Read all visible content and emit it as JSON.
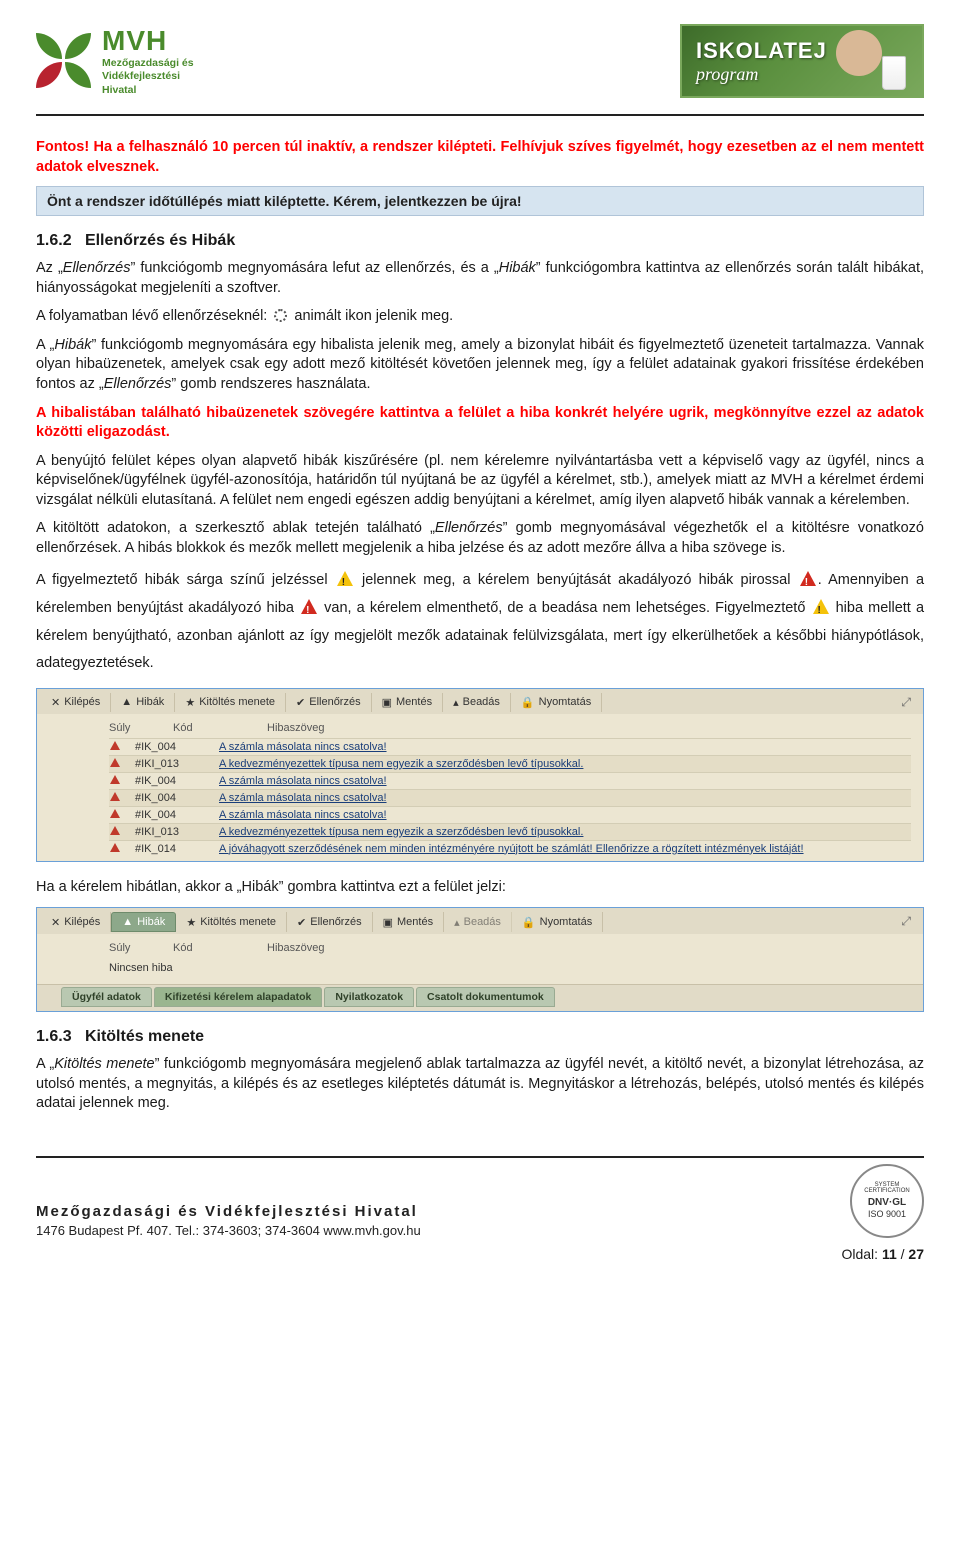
{
  "header": {
    "logo_acronym": "MVH",
    "logo_lines": [
      "Mezőgazdasági és",
      "Vidékfejlesztési",
      "Hivatal"
    ],
    "banner_title": "ISKOLATEJ",
    "banner_subtitle": "program"
  },
  "warning_text": "Fontos! Ha a felhasználó 10 percen túl inaktív, a rendszer kilépteti. Felhívjuk szíves figyelmét, hogy ezesetben az el nem mentett adatok elvesznek.",
  "notice_box": "Önt a rendszer időtúllépés miatt kiléptette. Kérem, jelentkezzen be újra!",
  "section_162": {
    "number": "1.6.2",
    "title": "Ellenőrzés és Hibák",
    "p1a": "Az „",
    "p1b": "Ellenőrzés",
    "p1c": "” funkciógomb megnyomására lefut az ellenőrzés, és a „",
    "p1d": "Hibák",
    "p1e": "” funkciógombra kattintva az ellenőrzés során talált hibákat, hiányosságokat megjeleníti a szoftver.",
    "p2a": "A folyamatban lévő ellenőrzéseknél:",
    "p2b": "animált ikon jelenik meg.",
    "p3a": "A „",
    "p3b": "Hibák",
    "p3c": "” funkciógomb megnyomására egy hibalista jelenik meg, amely a bizonylat hibáit és figyelmeztető üzeneteit tartalmazza. Vannak olyan hibaüzenetek, amelyek csak egy adott mező kitöltését követően jelennek meg, így a felület adatainak gyakori frissítése érdekében fontos az „",
    "p3d": "Ellenőrzés",
    "p3e": "” gomb rendszeres használata.",
    "p4": "A hibalistában található hibaüzenetek szövegére kattintva a felület a hiba konkrét helyére ugrik, megkönnyítve ezzel az adatok közötti eligazodást.",
    "p5": "A benyújtó felület képes olyan alapvető hibák kiszűrésére (pl. nem kérelemre nyilvántartásba vett a képviselő vagy az ügyfél, nincs a képviselőnek/ügyfélnek ügyfél-azonosítója, határidőn túl nyújtaná be az ügyfél a kérelmet, stb.), amelyek miatt az MVH a kérelmet érdemi vizsgálat nélküli elutasítaná. A felület nem engedi egészen addig benyújtani a kérelmet, amíg ilyen alapvető hibák vannak a kérelemben.",
    "p6a": "A kitöltött adatokon, a szerkesztő ablak tetején található „",
    "p6b": "Ellenőrzés",
    "p6c": "” gomb megnyomásával végezhetők el a kitöltésre vonatkozó ellenőrzések. A hibás blokkok és mezők mellett megjelenik a hiba jelzése és az adott mezőre állva a hiba szövege is.",
    "p7a": "A figyelmeztető hibák sárga színű jelzéssel",
    "p7b": "jelennek meg, a kérelem benyújtását akadályozó hibák pirossal",
    "p7c": ". Amennyiben a kérelemben benyújtást akadályozó hiba",
    "p7d": "van, a kérelem elmenthető, de a beadása nem lehetséges. Figyelmeztető",
    "p7e": "hiba mellett a kérelem benyújtható, azonban ajánlott az így megjelölt mezők adatainak felülvizsgálata, mert így elkerülhetőek a későbbi hiánypótlások, adategyeztetések."
  },
  "screenshot1": {
    "toolbar": [
      "Kilépés",
      "Hibák",
      "Kitöltés menete",
      "Ellenőrzés",
      "Mentés",
      "Beadás",
      "Nyomtatás"
    ],
    "toolbar_icons": [
      "✕",
      "▲",
      "★",
      "✔",
      "▣",
      "▴",
      "🔒"
    ],
    "columns": [
      "Súly",
      "Kód",
      "Hibaszöveg"
    ],
    "rows": [
      {
        "code": "#IK_004",
        "msg": "A számla másolata nincs csatolva!"
      },
      {
        "code": "#IKI_013",
        "msg": "A kedvezményezettek típusa nem egyezik a szerződésben levő típusokkal."
      },
      {
        "code": "#IK_004",
        "msg": "A számla másolata nincs csatolva!"
      },
      {
        "code": "#IK_004",
        "msg": "A számla másolata nincs csatolva!"
      },
      {
        "code": "#IK_004",
        "msg": "A számla másolata nincs csatolva!"
      },
      {
        "code": "#IKI_013",
        "msg": "A kedvezményezettek típusa nem egyezik a szerződésben levő típusokkal."
      },
      {
        "code": "#IK_014",
        "msg": "A jóváhagyott szerződésének nem minden intézményére nyújtott be számlát! Ellenőrizze a rögzített intézmények listáját!"
      }
    ]
  },
  "between_text": "Ha a kérelem hibátlan, akkor a „Hibák” gombra kattintva ezt a felület jelzi:",
  "screenshot2": {
    "toolbar": [
      "Kilépés",
      "Hibák",
      "Kitöltés menete",
      "Ellenőrzés",
      "Mentés",
      "Beadás",
      "Nyomtatás"
    ],
    "toolbar_icons": [
      "✕",
      "▲",
      "★",
      "✔",
      "▣",
      "▴",
      "🔒"
    ],
    "columns": [
      "Súly",
      "Kód",
      "Hibaszöveg"
    ],
    "no_error": "Nincsen hiba",
    "bottom_tabs": [
      "Ügyfél adatok",
      "Kifizetési kérelem alapadatok",
      "Nyilatkozatok",
      "Csatolt dokumentumok"
    ]
  },
  "section_163": {
    "number": "1.6.3",
    "title": "Kitöltés menete",
    "p1a": "A „",
    "p1b": "Kitöltés menete",
    "p1c": "” funkciógomb megnyomására megjelenő ablak tartalmazza az ügyfél nevét, a kitöltő nevét, a bizonylat létrehozása, az utolsó mentés, a megnyitás, a kilépés és az esetleges kiléptetés dátumát is. Megnyitáskor a létrehozás, belépés, utolsó mentés és kilépés adatai jelennek meg."
  },
  "footer": {
    "org": "Mezőgazdasági és Vidékfejlesztési Hivatal",
    "addr": "1476 Budapest Pf. 407.   Tel.: 374-3603; 374-3604   www.mvh.gov.hu",
    "cert_top": "SYSTEM CERTIFICATION",
    "cert_mid": "DNV·GL",
    "cert_bot": "ISO 9001",
    "page_label": "Oldal:",
    "page_cur": "11",
    "page_sep": "/",
    "page_total": "27"
  }
}
